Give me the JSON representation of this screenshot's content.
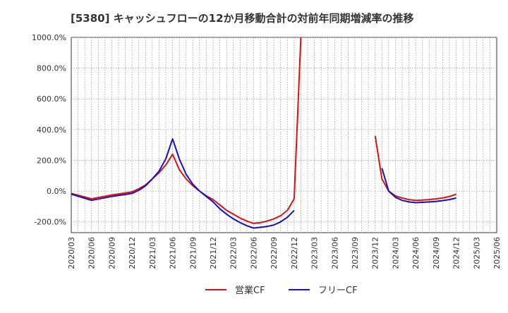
{
  "chart_data": {
    "type": "line",
    "title": "[5380]  キャッシュフローの12か月移動合計の対前年同期増減率の推移",
    "xlabel": "",
    "ylabel": "",
    "ylim": [
      -270,
      1000
    ],
    "yticks": [
      -200,
      0,
      200,
      400,
      600,
      800,
      1000
    ],
    "ytick_labels": [
      "-200.0%",
      "0.0%",
      "200.0%",
      "400.0%",
      "600.0%",
      "800.0%",
      "1000.0%"
    ],
    "x_start": "2020/03",
    "x_end": "2025/06",
    "xtick_labels": [
      "2020/03",
      "2020/06",
      "2020/09",
      "2020/12",
      "2021/03",
      "2021/06",
      "2021/09",
      "2021/12",
      "2022/03",
      "2022/06",
      "2022/09",
      "2022/12",
      "2023/03",
      "2023/06",
      "2023/09",
      "2023/12",
      "2024/03",
      "2024/06",
      "2024/09",
      "2024/12",
      "2025/03",
      "2025/06"
    ],
    "grid": true,
    "legend_position": "bottom-center",
    "series": [
      {
        "name": "営業CF",
        "color": "#dd1111",
        "x": [
          "2020/03",
          "2020/06",
          "2020/09",
          "2020/12",
          "2021/01",
          "2021/02",
          "2021/03",
          "2021/04",
          "2021/05",
          "2021/06",
          "2021/07",
          "2021/08",
          "2021/09",
          "2021/10",
          "2021/11",
          "2021/12",
          "2022/01",
          "2022/02",
          "2022/03",
          "2022/04",
          "2022/05",
          "2022/06",
          "2022/07",
          "2022/08",
          "2022/09",
          "2022/10",
          "2022/11",
          "2022/12",
          "2023/01",
          null,
          "2023/12",
          "2024/01",
          "2024/02",
          "2024/03",
          "2024/04",
          "2024/05",
          "2024/06",
          "2024/07",
          "2024/08",
          "2024/09",
          "2024/10",
          "2024/11",
          "2024/12"
        ],
        "values": [
          -15,
          -50,
          -25,
          -5,
          15,
          40,
          80,
          120,
          170,
          240,
          140,
          80,
          35,
          0,
          -30,
          -55,
          -90,
          -125,
          -150,
          -175,
          -195,
          -210,
          -205,
          -195,
          -180,
          -160,
          -125,
          -50,
          1000,
          null,
          360,
          80,
          0,
          -30,
          -45,
          -55,
          -60,
          -58,
          -55,
          -50,
          -45,
          -35,
          -20
        ]
      },
      {
        "name": "フリーCF",
        "color": "#1111cc",
        "x": [
          "2020/03",
          "2020/06",
          "2020/09",
          "2020/12",
          "2021/01",
          "2021/02",
          "2021/03",
          "2021/04",
          "2021/05",
          "2021/06",
          "2021/07",
          "2021/08",
          "2021/09",
          "2021/10",
          "2021/11",
          "2021/12",
          "2022/01",
          "2022/02",
          "2022/03",
          "2022/04",
          "2022/05",
          "2022/06",
          "2022/07",
          "2022/08",
          "2022/09",
          "2022/10",
          "2022/11",
          "2022/12",
          null,
          "2024/01",
          "2024/02",
          "2024/03",
          "2024/04",
          "2024/05",
          "2024/06",
          "2024/07",
          "2024/08",
          "2024/09",
          "2024/10",
          "2024/11",
          "2024/12"
        ],
        "values": [
          -20,
          -60,
          -35,
          -15,
          5,
          35,
          80,
          130,
          210,
          340,
          210,
          110,
          45,
          0,
          -35,
          -70,
          -115,
          -150,
          -180,
          -205,
          -225,
          -240,
          -235,
          -230,
          -220,
          -200,
          -170,
          -125,
          null,
          150,
          0,
          -40,
          -60,
          -70,
          -75,
          -73,
          -70,
          -67,
          -62,
          -55,
          -45
        ]
      }
    ]
  }
}
